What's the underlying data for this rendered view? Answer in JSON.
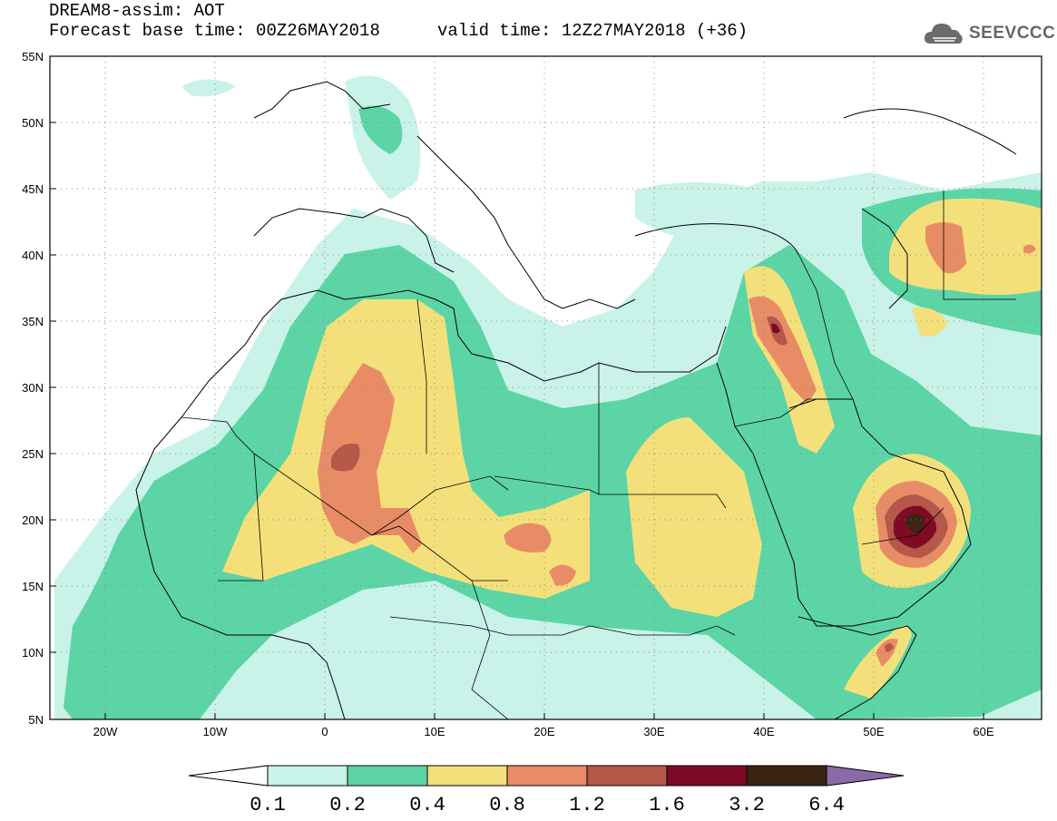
{
  "header": {
    "title": "DREAM8-assim: AOT",
    "base_time": "Forecast base time: 00Z26MAY2018",
    "valid_time": "valid time: 12Z27MAY2018 (+36)"
  },
  "logo": {
    "text": "SEEVCCC",
    "icon": "cloud-icon"
  },
  "axes": {
    "lat_labels": [
      "55N",
      "50N",
      "45N",
      "40N",
      "35N",
      "30N",
      "25N",
      "20N",
      "15N",
      "10N",
      "5N"
    ],
    "lon_labels": [
      "20W",
      "10W",
      "0",
      "10E",
      "20E",
      "30E",
      "40E",
      "50E",
      "60E"
    ],
    "lat_range": [
      5,
      55
    ],
    "lon_range": [
      -25,
      65
    ],
    "grid": "dotted"
  },
  "colorbar": {
    "labels": [
      "0.1",
      "0.2",
      "0.4",
      "0.8",
      "1.2",
      "1.6",
      "3.2",
      "6.4"
    ],
    "colors": [
      "#ffffff",
      "#c9f2e8",
      "#5cd4a6",
      "#f4e07a",
      "#e88c66",
      "#b5584a",
      "#7f0a26",
      "#3c2414",
      "#8a6aa8"
    ]
  }
}
